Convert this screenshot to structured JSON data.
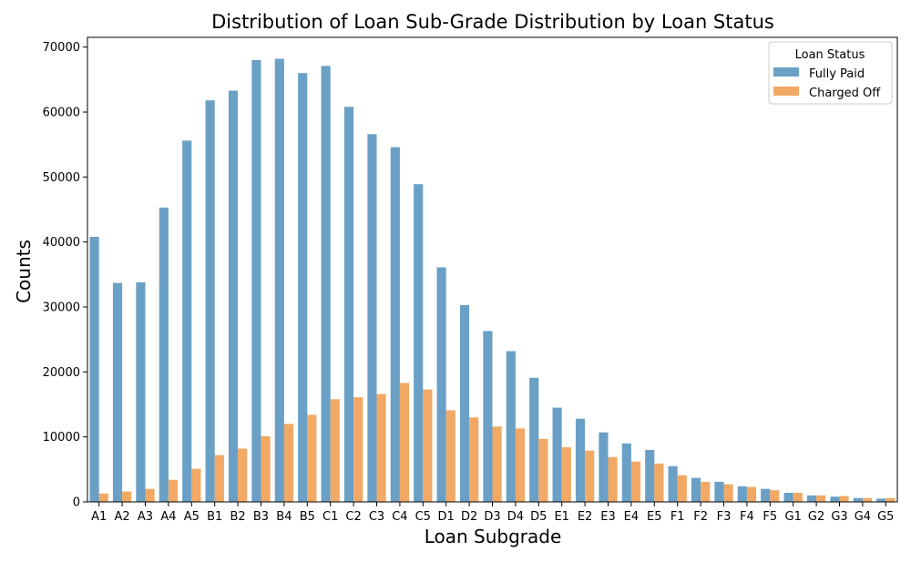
{
  "chart_data": {
    "type": "bar",
    "title": "Distribution of Loan Sub-Grade Distribution by Loan Status",
    "xlabel": "Loan Subgrade",
    "ylabel": "Counts",
    "ylim": [
      0,
      71500
    ],
    "yticks": [
      0,
      10000,
      20000,
      30000,
      40000,
      50000,
      60000,
      70000
    ],
    "grid": false,
    "legend": {
      "title": "Loan Status",
      "placement": "top-right"
    },
    "categories": [
      "A1",
      "A2",
      "A3",
      "A4",
      "A5",
      "B1",
      "B2",
      "B3",
      "B4",
      "B5",
      "C1",
      "C2",
      "C3",
      "C4",
      "C5",
      "D1",
      "D2",
      "D3",
      "D4",
      "D5",
      "E1",
      "E2",
      "E3",
      "E4",
      "E5",
      "F1",
      "F2",
      "F3",
      "F4",
      "F5",
      "G1",
      "G2",
      "G3",
      "G4",
      "G5"
    ],
    "series": [
      {
        "name": "Fully Paid",
        "color": "#6aa0c6",
        "values": [
          40800,
          33700,
          33800,
          45300,
          55600,
          61800,
          63300,
          68000,
          68200,
          66000,
          67100,
          60800,
          56600,
          54600,
          48900,
          36100,
          30300,
          26300,
          23200,
          19100,
          14500,
          12800,
          10700,
          9000,
          8000,
          5500,
          3700,
          3100,
          2400,
          2000,
          1400,
          1000,
          800,
          600,
          500
        ]
      },
      {
        "name": "Charged Off",
        "color": "#f1a965",
        "values": [
          1300,
          1600,
          2000,
          3400,
          5100,
          7200,
          8200,
          10100,
          12000,
          13400,
          15800,
          16100,
          16600,
          18300,
          17300,
          14100,
          13000,
          11600,
          11300,
          9700,
          8400,
          7900,
          6900,
          6200,
          5900,
          4100,
          3100,
          2700,
          2300,
          1800,
          1400,
          1000,
          900,
          600,
          600
        ]
      }
    ]
  }
}
